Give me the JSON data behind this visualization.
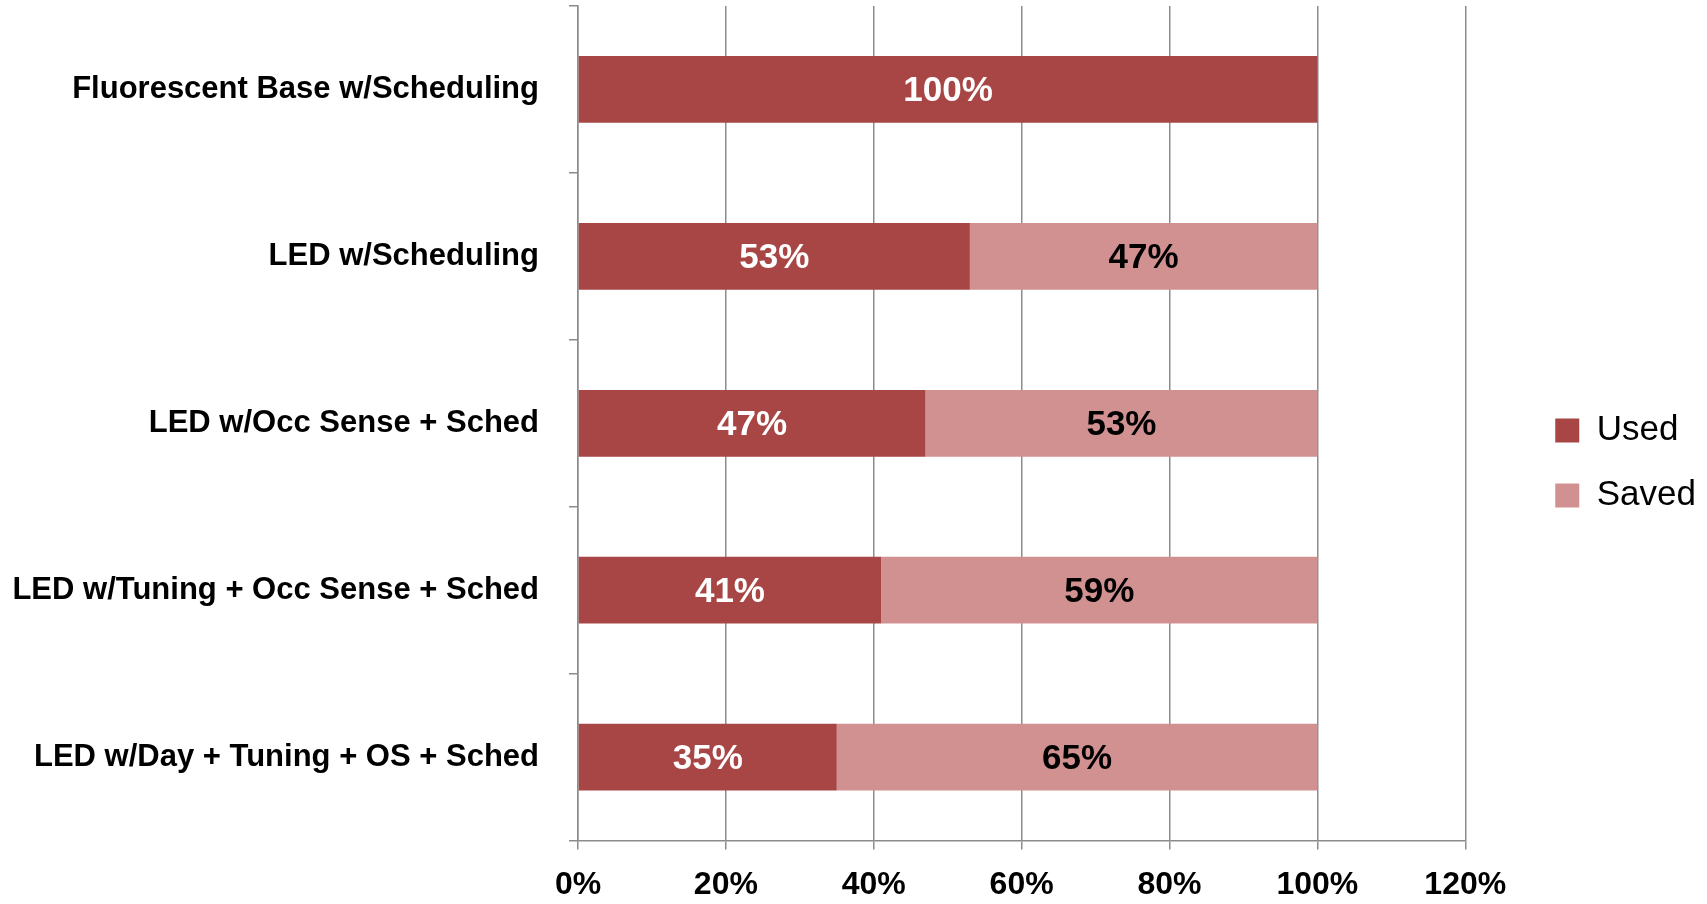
{
  "chart_data": {
    "type": "bar",
    "orientation": "horizontal",
    "stacked": true,
    "categories": [
      "Fluorescent Base w/Scheduling",
      "LED w/Scheduling",
      "LED w/Occ Sense + Sched",
      "LED w/Tuning + Occ Sense + Sched",
      "LED w/Day + Tuning + OS + Sched"
    ],
    "series": [
      {
        "name": "Used",
        "color": "#a84646",
        "values": [
          100,
          53,
          47,
          41,
          35
        ],
        "value_labels": [
          "100%",
          "53%",
          "47%",
          "41%",
          "35%"
        ]
      },
      {
        "name": "Saved",
        "color": "#d29191",
        "values": [
          null,
          47,
          53,
          59,
          65
        ],
        "value_labels": [
          null,
          "47%",
          "53%",
          "59%",
          "65%"
        ]
      }
    ],
    "xlim": [
      0,
      120
    ],
    "xticks": [
      {
        "value": 0,
        "label": "0%"
      },
      {
        "value": 20,
        "label": "20%"
      },
      {
        "value": 40,
        "label": "40%"
      },
      {
        "value": 60,
        "label": "60%"
      },
      {
        "value": 80,
        "label": "80%"
      },
      {
        "value": 100,
        "label": "100%"
      },
      {
        "value": 120,
        "label": "120%"
      }
    ],
    "grid": "x",
    "legend": "right"
  }
}
